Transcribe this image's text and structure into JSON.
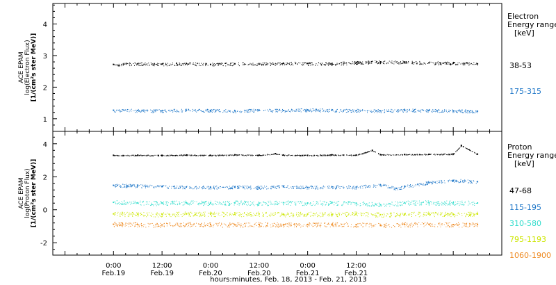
{
  "chart_data": [
    {
      "type": "scatter",
      "panel": "electron",
      "ylabel_lines": [
        "ACE EPAM",
        "log(Electron Flux)",
        "[1/(cm²s ster MeV)]"
      ],
      "yticks": [
        1,
        2,
        3,
        4
      ],
      "ylim": [
        0.6,
        4.65
      ],
      "legend_title": [
        "Electron",
        "Energy ranges",
        "[keV]"
      ],
      "series": [
        {
          "name": "38-53",
          "color": "#000000",
          "x": [
            0,
            6,
            12,
            18,
            24,
            30,
            36,
            42,
            48,
            54,
            60,
            66,
            72,
            78,
            84,
            90
          ],
          "y": [
            2.72,
            2.74,
            2.73,
            2.75,
            2.72,
            2.74,
            2.73,
            2.76,
            2.75,
            2.74,
            2.78,
            2.8,
            2.79,
            2.77,
            2.76,
            2.74
          ]
        },
        {
          "name": "175-315",
          "color": "#1f77c8",
          "x": [
            0,
            6,
            12,
            18,
            24,
            30,
            36,
            42,
            48,
            54,
            60,
            66,
            72,
            78,
            84,
            90
          ],
          "y": [
            1.27,
            1.26,
            1.25,
            1.27,
            1.26,
            1.25,
            1.27,
            1.26,
            1.28,
            1.27,
            1.26,
            1.25,
            1.27,
            1.26,
            1.25,
            1.24
          ]
        }
      ]
    },
    {
      "type": "scatter",
      "panel": "proton",
      "ylabel_lines": [
        "ACE EPAM",
        "log(Proton Flux)",
        "[1/(cm²s ster MeV)]"
      ],
      "yticks": [
        -2,
        0,
        2,
        4
      ],
      "ylim": [
        -2.75,
        4.75
      ],
      "legend_title": [
        "Proton",
        "Energy ranges",
        "[keV]"
      ],
      "series": [
        {
          "name": "47-68",
          "color": "#000000",
          "x": [
            0,
            6,
            12,
            18,
            24,
            30,
            36,
            40,
            42,
            48,
            54,
            60,
            64,
            66,
            72,
            78,
            84,
            86,
            90
          ],
          "y": [
            3.3,
            3.31,
            3.3,
            3.32,
            3.3,
            3.33,
            3.31,
            3.4,
            3.32,
            3.3,
            3.33,
            3.32,
            3.6,
            3.34,
            3.35,
            3.36,
            3.38,
            3.9,
            3.37
          ]
        },
        {
          "name": "115-195",
          "color": "#1f77c8",
          "x": [
            0,
            6,
            12,
            18,
            24,
            30,
            36,
            42,
            48,
            54,
            60,
            66,
            70,
            72,
            78,
            84,
            90
          ],
          "y": [
            1.48,
            1.45,
            1.4,
            1.38,
            1.36,
            1.38,
            1.35,
            1.4,
            1.35,
            1.38,
            1.37,
            1.5,
            1.3,
            1.4,
            1.65,
            1.78,
            1.7
          ]
        },
        {
          "name": "310-580",
          "color": "#33ddcc",
          "x": [
            0,
            6,
            12,
            18,
            24,
            30,
            36,
            42,
            48,
            54,
            60,
            66,
            72,
            78,
            84,
            90
          ],
          "y": [
            0.45,
            0.42,
            0.4,
            0.43,
            0.41,
            0.42,
            0.4,
            0.43,
            0.41,
            0.42,
            0.4,
            0.3,
            0.42,
            0.43,
            0.42,
            0.41
          ]
        },
        {
          "name": "795-1193",
          "color": "#cce600",
          "x": [
            0,
            6,
            12,
            18,
            24,
            30,
            36,
            42,
            48,
            54,
            60,
            66,
            72,
            78,
            84,
            90
          ],
          "y": [
            -0.25,
            -0.27,
            -0.28,
            -0.25,
            -0.26,
            -0.27,
            -0.25,
            -0.28,
            -0.26,
            -0.27,
            -0.25,
            -0.3,
            -0.27,
            -0.26,
            -0.27,
            -0.26
          ]
        },
        {
          "name": "1060-1900",
          "color": "#ee8a22",
          "x": [
            0,
            6,
            12,
            18,
            24,
            30,
            36,
            42,
            48,
            54,
            60,
            66,
            72,
            78,
            84,
            90
          ],
          "y": [
            -0.88,
            -0.9,
            -0.92,
            -0.88,
            -0.9,
            -0.91,
            -0.89,
            -0.92,
            -0.9,
            -0.88,
            -0.9,
            -0.95,
            -0.9,
            -0.89,
            -0.9,
            -0.9
          ]
        }
      ]
    }
  ],
  "x_axis": {
    "xlim": [
      -15,
      96
    ],
    "ticks": [
      {
        "x": 0,
        "time": "0:00",
        "date": "Feb.19"
      },
      {
        "x": 12,
        "time": "12:00",
        "date": "Feb.19"
      },
      {
        "x": 24,
        "time": "0:00",
        "date": "Feb.20"
      },
      {
        "x": 36,
        "time": "12:00",
        "date": "Feb.20"
      },
      {
        "x": 48,
        "time": "0:00",
        "date": "Feb.21"
      },
      {
        "x": 60,
        "time": "12:00",
        "date": "Feb.21"
      }
    ],
    "minor_step": 3,
    "xlabel": "hours:minutes, Feb. 18, 2013 - Feb. 21, 2013"
  }
}
